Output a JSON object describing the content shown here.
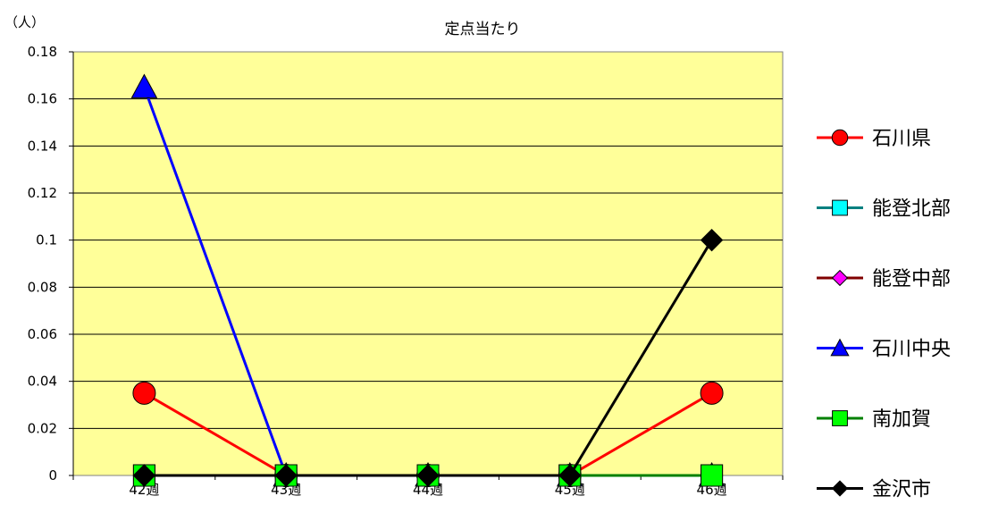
{
  "chart_data": {
    "type": "line",
    "title": "定点当たり",
    "ylabel": "（人）",
    "xlabel": "",
    "categories": [
      "42週",
      "43週",
      "44週",
      "45週",
      "46週"
    ],
    "ylim": [
      0,
      0.18
    ],
    "yticks": [
      "0",
      "0.02",
      "0.04",
      "0.06",
      "0.08",
      "0.1",
      "0.12",
      "0.14",
      "0.16",
      "0.18"
    ],
    "grid": true,
    "plot_background": "#FFFF99",
    "legend_position": "right",
    "series": [
      {
        "name": "石川県",
        "values": [
          0.035,
          0,
          0,
          0,
          0.035
        ],
        "line_color": "#FF0000",
        "marker": "circle",
        "marker_color": "#FF0000"
      },
      {
        "name": "能登北部",
        "values": [
          0,
          0,
          0,
          0,
          0
        ],
        "line_color": "#008080",
        "marker": "square",
        "marker_color": "#00FFFF"
      },
      {
        "name": "能登中部",
        "values": [
          0,
          0,
          0,
          0,
          0
        ],
        "line_color": "#800000",
        "marker": "diamond",
        "marker_color": "#FF00FF"
      },
      {
        "name": "石川中央",
        "values": [
          0.165,
          0,
          0,
          0,
          0
        ],
        "line_color": "#0000FF",
        "marker": "triangle",
        "marker_color": "#0000FF"
      },
      {
        "name": "南加賀",
        "values": [
          0,
          0,
          0,
          0,
          0
        ],
        "line_color": "#008000",
        "marker": "square",
        "marker_color": "#00FF00"
      },
      {
        "name": "金沢市",
        "values": [
          0,
          0,
          0,
          0,
          0.1
        ],
        "line_color": "#000000",
        "marker": "diamond",
        "marker_color": "#000000"
      }
    ]
  }
}
